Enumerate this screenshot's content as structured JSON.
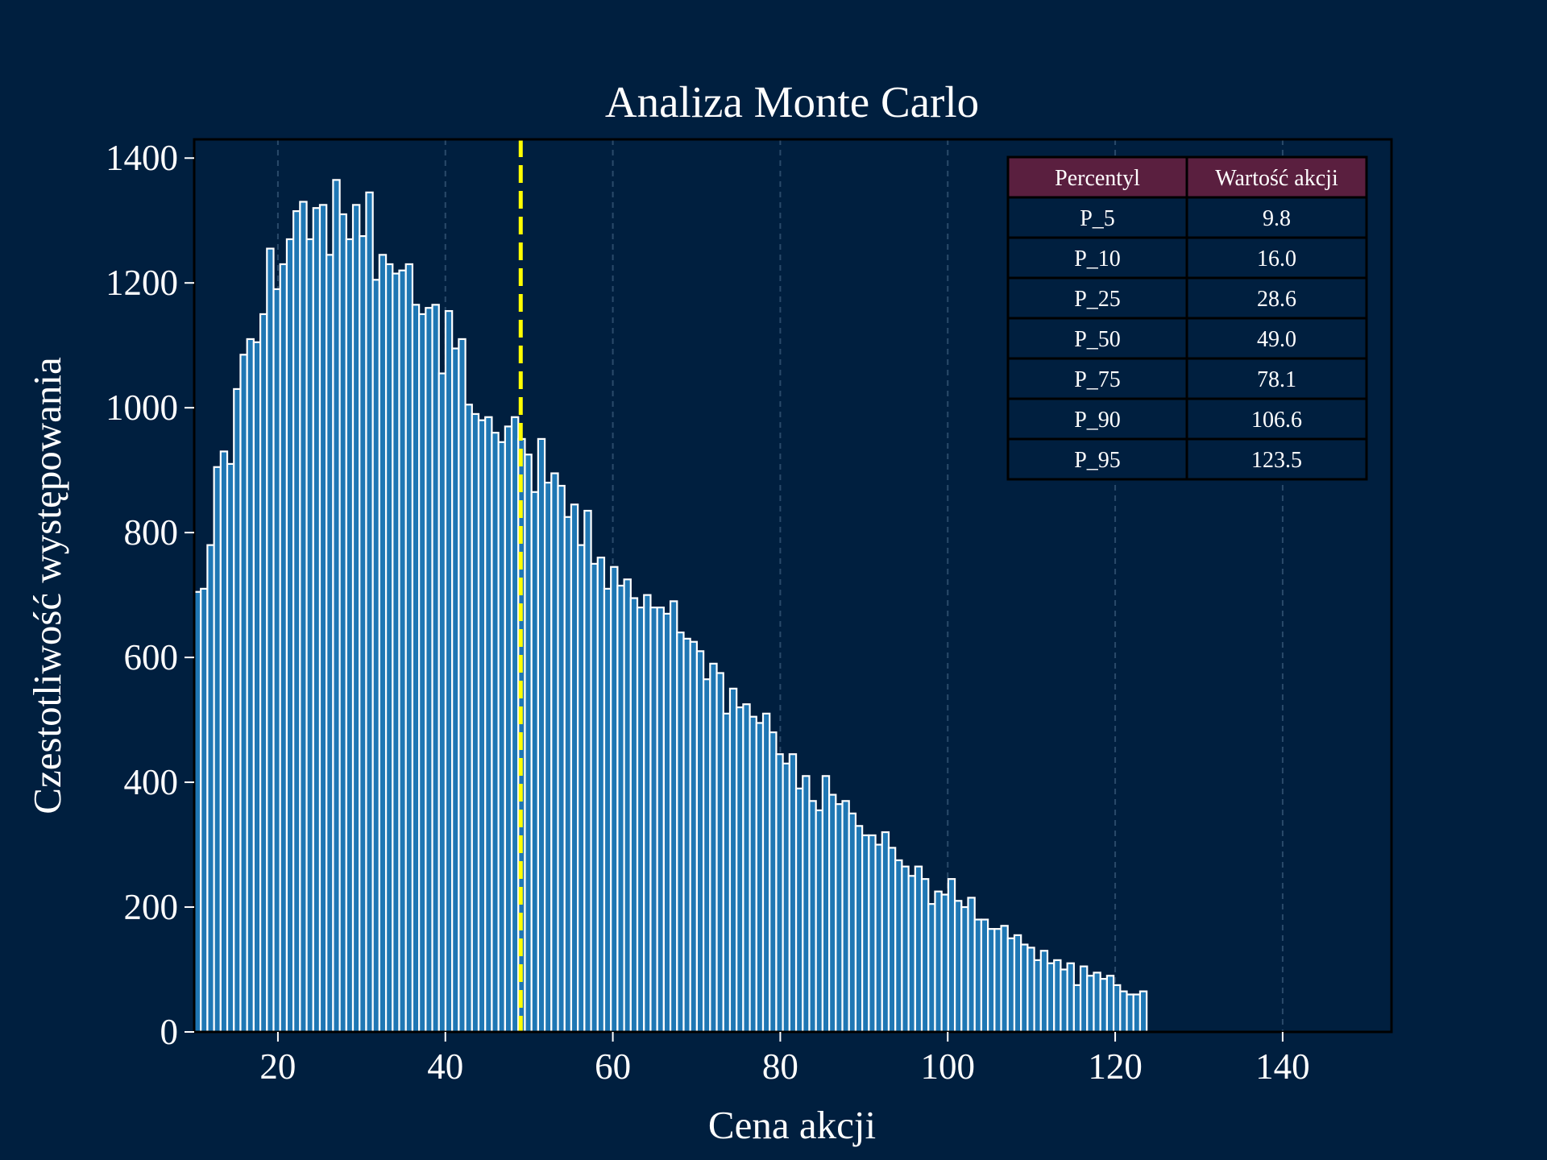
{
  "colors": {
    "background": "#001f3f",
    "bar_fill": "#1f77b4",
    "bar_edge": "#ffffff",
    "median_line": "#ffff00",
    "grid": "#2a4a6a",
    "table_header": "#5a1f3f",
    "table_cell": "#001f3f"
  },
  "chart_data": {
    "type": "bar",
    "title": "Analiza Monte Carlo",
    "xlabel": "Cena akcji",
    "ylabel": "Czestotliwość występowania",
    "xlim": [
      10,
      153
    ],
    "ylim": [
      0,
      1430
    ],
    "xticks": [
      20,
      40,
      60,
      80,
      100,
      120,
      140
    ],
    "yticks": [
      0,
      200,
      400,
      600,
      800,
      1000,
      1200,
      1400
    ],
    "grid": "x-axis dashed",
    "bin_start": 10,
    "bin_width": 0.79,
    "values": [
      705,
      710,
      780,
      905,
      930,
      910,
      1030,
      1085,
      1110,
      1105,
      1150,
      1255,
      1190,
      1230,
      1270,
      1315,
      1330,
      1270,
      1320,
      1325,
      1245,
      1365,
      1310,
      1270,
      1325,
      1275,
      1345,
      1205,
      1245,
      1230,
      1215,
      1220,
      1230,
      1165,
      1150,
      1160,
      1165,
      1055,
      1155,
      1095,
      1110,
      1005,
      990,
      980,
      985,
      960,
      945,
      970,
      985,
      950,
      925,
      865,
      950,
      880,
      895,
      875,
      825,
      845,
      780,
      835,
      750,
      760,
      710,
      745,
      715,
      725,
      695,
      680,
      700,
      680,
      680,
      670,
      690,
      640,
      630,
      625,
      610,
      565,
      590,
      575,
      510,
      550,
      520,
      525,
      505,
      495,
      510,
      480,
      445,
      430,
      445,
      390,
      410,
      370,
      355,
      410,
      380,
      365,
      370,
      350,
      330,
      315,
      315,
      300,
      320,
      295,
      275,
      265,
      250,
      265,
      245,
      205,
      225,
      220,
      245,
      210,
      200,
      215,
      180,
      180,
      165,
      165,
      170,
      150,
      155,
      140,
      135,
      115,
      130,
      110,
      115,
      100,
      110,
      75,
      105,
      90,
      95,
      85,
      90,
      75,
      65,
      60,
      60,
      65
    ],
    "median_line": 49.0,
    "table": {
      "headers": [
        "Percentyl",
        "Wartość akcji"
      ],
      "rows": [
        [
          "P_5",
          "9.8"
        ],
        [
          "P_10",
          "16.0"
        ],
        [
          "P_25",
          "28.6"
        ],
        [
          "P_50",
          "49.0"
        ],
        [
          "P_75",
          "78.1"
        ],
        [
          "P_90",
          "106.6"
        ],
        [
          "P_95",
          "123.5"
        ]
      ]
    }
  }
}
